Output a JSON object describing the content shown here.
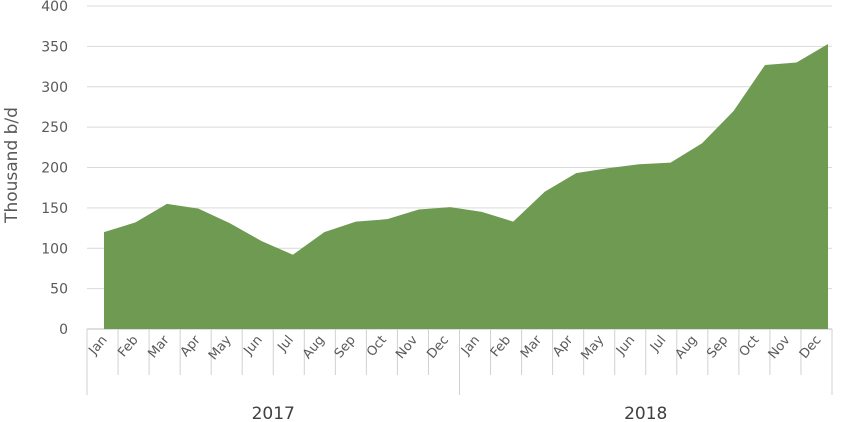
{
  "chart_data": {
    "type": "area",
    "ylabel": "Thousand b/d",
    "ylim": [
      0,
      400
    ],
    "yticks": [
      0,
      50,
      100,
      150,
      200,
      250,
      300,
      350,
      400
    ],
    "grid": true,
    "color": "#6f9a52",
    "years": [
      {
        "label": "2017",
        "months": [
          "Jan",
          "Feb",
          "Mar",
          "Apr",
          "May",
          "Jun",
          "Jul",
          "Aug",
          "Sep",
          "Oct",
          "Nov",
          "Dec"
        ]
      },
      {
        "label": "2018",
        "months": [
          "Jan",
          "Feb",
          "Mar",
          "Apr",
          "May",
          "Jun",
          "Jul",
          "Aug",
          "Sep",
          "Oct",
          "Nov",
          "Dec"
        ]
      }
    ],
    "values": [
      120,
      132,
      155,
      149,
      131,
      109,
      92,
      120,
      133,
      136,
      148,
      151,
      145,
      133,
      170,
      193,
      199,
      204,
      206,
      230,
      270,
      327,
      330,
      353
    ]
  }
}
